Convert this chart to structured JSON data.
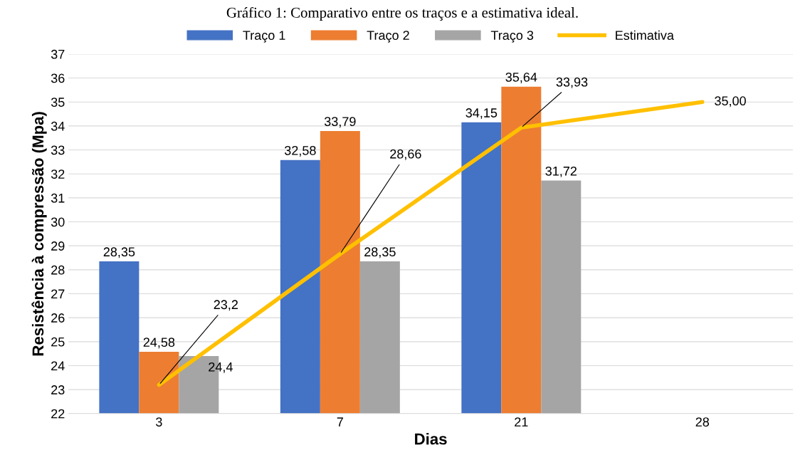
{
  "chart_data": {
    "type": "bar",
    "title": "Gráfico 1: Comparativo entre os traços e a estimativa ideal.",
    "xlabel": "Dias",
    "ylabel": "Resistência à compressão (Mpa)",
    "categories": [
      "3",
      "7",
      "21",
      "28"
    ],
    "series": [
      {
        "name": "Traço 1",
        "color": "#4472c4",
        "values": [
          28.35,
          32.58,
          34.15,
          null
        ],
        "value_labels": [
          "28,35",
          "32,58",
          "34,15",
          null
        ]
      },
      {
        "name": "Traço 2",
        "color": "#ed7d31",
        "values": [
          24.58,
          33.79,
          35.64,
          null
        ],
        "value_labels": [
          "24,58",
          "33,79",
          "35,64",
          null
        ]
      },
      {
        "name": "Traço 3",
        "color": "#a5a5a5",
        "values": [
          24.4,
          28.35,
          31.72,
          null
        ],
        "value_labels": [
          "24,4",
          "28,35",
          "31,72",
          null
        ]
      },
      {
        "name": "Estimativa",
        "type": "line",
        "color": "#ffc000",
        "values": [
          23.2,
          28.66,
          33.93,
          35.0
        ],
        "value_labels": [
          "23,2",
          "28,66",
          "33,93",
          "35,00"
        ]
      }
    ],
    "ylim": [
      22,
      37
    ],
    "yticks": [
      22,
      23,
      24,
      25,
      26,
      27,
      28,
      29,
      30,
      31,
      32,
      33,
      34,
      35,
      36,
      37
    ],
    "grid": "y",
    "legend": "top",
    "marker": "none",
    "line_style": "solid"
  }
}
